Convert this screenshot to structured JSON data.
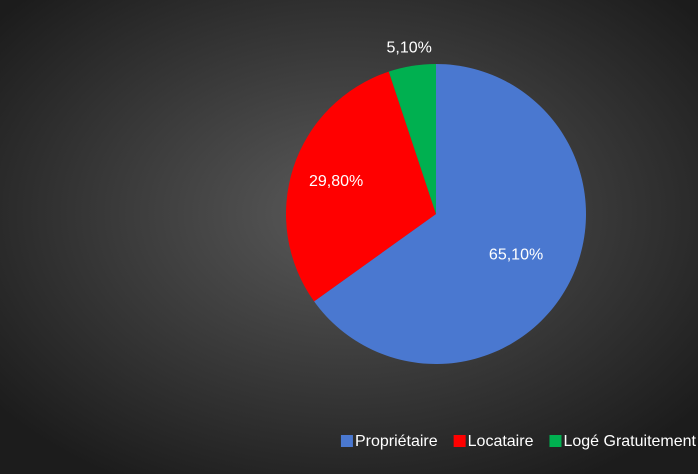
{
  "chart_data": {
    "type": "pie",
    "categories": [
      "Propriétaire",
      "Locataire",
      "Logé Gratuitement"
    ],
    "values": [
      65.1,
      29.8,
      5.1
    ],
    "value_labels": [
      "65,10%",
      "29,80%",
      "5,10%"
    ],
    "colors": [
      "#4a78d0",
      "#ff0000",
      "#00b050"
    ],
    "legend": "bottom"
  }
}
